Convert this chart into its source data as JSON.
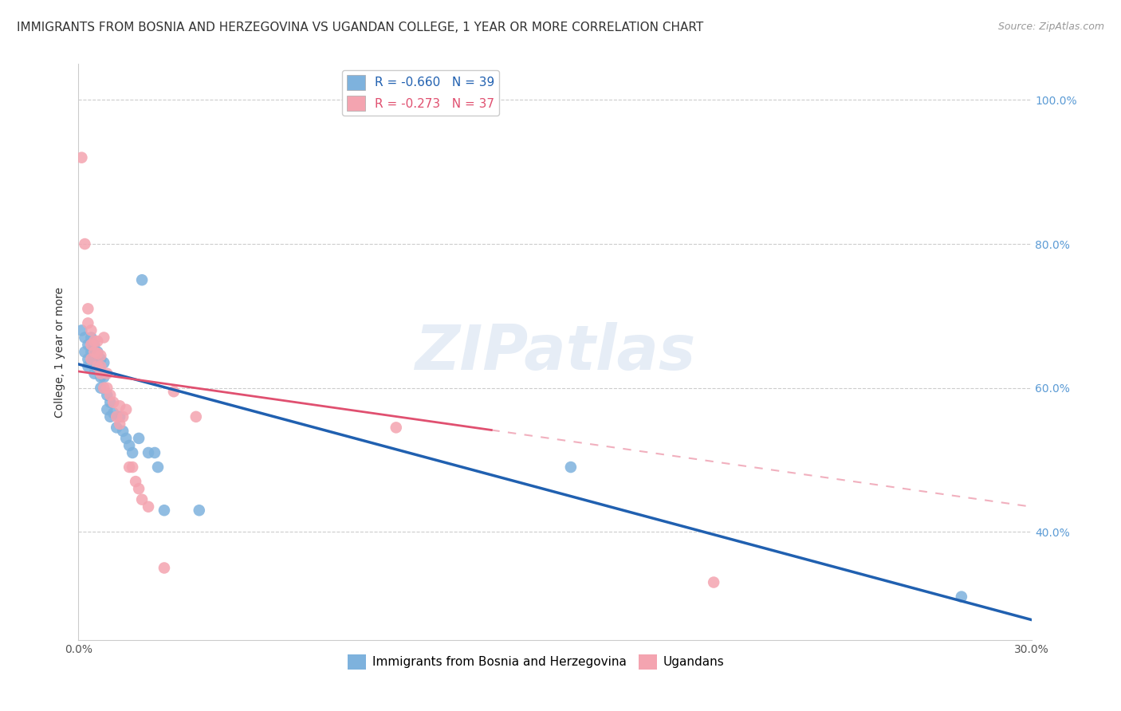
{
  "title": "IMMIGRANTS FROM BOSNIA AND HERZEGOVINA VS UGANDAN COLLEGE, 1 YEAR OR MORE CORRELATION CHART",
  "source": "Source: ZipAtlas.com",
  "ylabel": "College, 1 year or more",
  "watermark": "ZIPatlas",
  "xlim": [
    0.0,
    0.3
  ],
  "ylim": [
    0.25,
    1.05
  ],
  "blue_R": -0.66,
  "blue_N": 39,
  "pink_R": -0.273,
  "pink_N": 37,
  "blue_color": "#7EB2DD",
  "pink_color": "#F4A4B0",
  "blue_line_color": "#2060B0",
  "pink_line_color": "#E05070",
  "right_yticks": [
    0.4,
    0.6,
    0.8,
    1.0
  ],
  "right_yticklabels": [
    "40.0%",
    "60.0%",
    "80.0%",
    "100.0%"
  ],
  "blue_scatter": [
    [
      0.001,
      0.68
    ],
    [
      0.002,
      0.67
    ],
    [
      0.002,
      0.65
    ],
    [
      0.003,
      0.66
    ],
    [
      0.003,
      0.64
    ],
    [
      0.003,
      0.63
    ],
    [
      0.004,
      0.67
    ],
    [
      0.004,
      0.65
    ],
    [
      0.004,
      0.635
    ],
    [
      0.005,
      0.66
    ],
    [
      0.005,
      0.645
    ],
    [
      0.005,
      0.62
    ],
    [
      0.006,
      0.65
    ],
    [
      0.006,
      0.625
    ],
    [
      0.007,
      0.64
    ],
    [
      0.007,
      0.615
    ],
    [
      0.007,
      0.6
    ],
    [
      0.008,
      0.635
    ],
    [
      0.008,
      0.615
    ],
    [
      0.009,
      0.59
    ],
    [
      0.009,
      0.57
    ],
    [
      0.01,
      0.58
    ],
    [
      0.01,
      0.56
    ],
    [
      0.011,
      0.565
    ],
    [
      0.012,
      0.545
    ],
    [
      0.013,
      0.56
    ],
    [
      0.014,
      0.54
    ],
    [
      0.015,
      0.53
    ],
    [
      0.016,
      0.52
    ],
    [
      0.017,
      0.51
    ],
    [
      0.019,
      0.53
    ],
    [
      0.02,
      0.75
    ],
    [
      0.022,
      0.51
    ],
    [
      0.024,
      0.51
    ],
    [
      0.025,
      0.49
    ],
    [
      0.027,
      0.43
    ],
    [
      0.038,
      0.43
    ],
    [
      0.155,
      0.49
    ],
    [
      0.278,
      0.31
    ]
  ],
  "pink_scatter": [
    [
      0.001,
      0.92
    ],
    [
      0.002,
      0.8
    ],
    [
      0.003,
      0.71
    ],
    [
      0.003,
      0.69
    ],
    [
      0.004,
      0.68
    ],
    [
      0.004,
      0.66
    ],
    [
      0.004,
      0.64
    ],
    [
      0.005,
      0.665
    ],
    [
      0.005,
      0.65
    ],
    [
      0.006,
      0.665
    ],
    [
      0.006,
      0.648
    ],
    [
      0.006,
      0.63
    ],
    [
      0.007,
      0.645
    ],
    [
      0.007,
      0.63
    ],
    [
      0.007,
      0.62
    ],
    [
      0.008,
      0.67
    ],
    [
      0.008,
      0.6
    ],
    [
      0.009,
      0.62
    ],
    [
      0.009,
      0.6
    ],
    [
      0.01,
      0.59
    ],
    [
      0.011,
      0.58
    ],
    [
      0.012,
      0.56
    ],
    [
      0.013,
      0.575
    ],
    [
      0.013,
      0.55
    ],
    [
      0.014,
      0.56
    ],
    [
      0.015,
      0.57
    ],
    [
      0.016,
      0.49
    ],
    [
      0.017,
      0.49
    ],
    [
      0.018,
      0.47
    ],
    [
      0.019,
      0.46
    ],
    [
      0.02,
      0.445
    ],
    [
      0.022,
      0.435
    ],
    [
      0.03,
      0.595
    ],
    [
      0.037,
      0.56
    ],
    [
      0.1,
      0.545
    ],
    [
      0.2,
      0.33
    ],
    [
      0.027,
      0.35
    ]
  ],
  "grid_color": "#CCCCCC",
  "background_color": "#FFFFFF",
  "title_fontsize": 11,
  "axis_label_fontsize": 10,
  "tick_fontsize": 10,
  "legend_fontsize": 11,
  "source_fontsize": 9
}
